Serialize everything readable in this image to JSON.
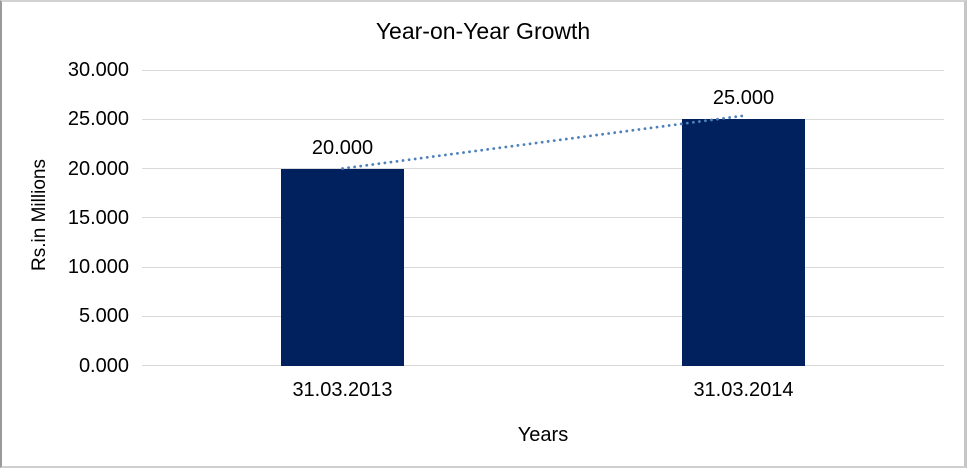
{
  "chart_data": {
    "type": "bar",
    "title": "Year-on-Year Growth",
    "categories": [
      "31.03.2013",
      "31.03.2014"
    ],
    "values": [
      20.0,
      25.0
    ],
    "data_labels": [
      "20.000",
      "25.000"
    ],
    "xlabel": "Years",
    "ylabel": "Rs.in Millions",
    "ylim": [
      0,
      30
    ],
    "ytick_step": 5,
    "ytick_labels_top_to_bottom": [
      "30.000",
      "25.000",
      "20.000",
      "15.000",
      "10.000",
      "5.000",
      "0.000"
    ],
    "grid": true,
    "legend_position": "none",
    "trendline": {
      "style": "dotted",
      "connects": "tops of the two bars",
      "from_value": 20.0,
      "to_value": 25.0
    },
    "colors": {
      "bar": "#00215e",
      "trendline": "#4e80bc",
      "gridline": "#d9d9d9",
      "text": "#000000",
      "background": "#ffffff",
      "frame_border": "#bdbdbd"
    }
  }
}
